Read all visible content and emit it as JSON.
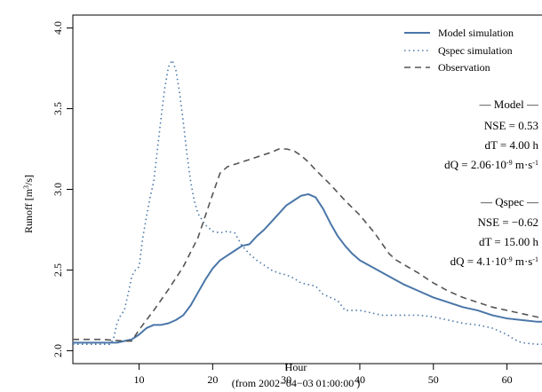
{
  "chart_data": {
    "type": "line",
    "xlabel": "Hour",
    "xlabel_sub": "(from 2002−04−03 01:00:00 )",
    "ylabel": "Runoff [m³/s]",
    "xlim": [
      1,
      65
    ],
    "ylim": [
      2.0,
      4.0
    ],
    "x_ticks": [
      10,
      20,
      30,
      40,
      50,
      60
    ],
    "y_ticks": [
      2.0,
      2.5,
      3.0,
      3.5,
      4.0
    ],
    "x_tick_labels": [
      "10",
      "20",
      "30",
      "40",
      "50",
      "60"
    ],
    "y_tick_labels": [
      "2.0",
      "2.5",
      "3.0",
      "3.5",
      "4.0"
    ],
    "grid": false,
    "legend_position": "top-right",
    "series": [
      {
        "name": "Model simulation",
        "color": "#4a76a8",
        "style": "solid",
        "points": [
          [
            1,
            2.05
          ],
          [
            3,
            2.05
          ],
          [
            5,
            2.05
          ],
          [
            7,
            2.05
          ],
          [
            8,
            2.06
          ],
          [
            9,
            2.07
          ],
          [
            10,
            2.1
          ],
          [
            11,
            2.14
          ],
          [
            12,
            2.16
          ],
          [
            13,
            2.16
          ],
          [
            14,
            2.17
          ],
          [
            15,
            2.19
          ],
          [
            16,
            2.22
          ],
          [
            17,
            2.28
          ],
          [
            18,
            2.36
          ],
          [
            19,
            2.44
          ],
          [
            20,
            2.51
          ],
          [
            21,
            2.56
          ],
          [
            22,
            2.59
          ],
          [
            23,
            2.62
          ],
          [
            24,
            2.65
          ],
          [
            25,
            2.66
          ],
          [
            26,
            2.71
          ],
          [
            27,
            2.75
          ],
          [
            28,
            2.8
          ],
          [
            29,
            2.85
          ],
          [
            30,
            2.9
          ],
          [
            31,
            2.93
          ],
          [
            32,
            2.96
          ],
          [
            33,
            2.97
          ],
          [
            34,
            2.95
          ],
          [
            35,
            2.88
          ],
          [
            36,
            2.79
          ],
          [
            37,
            2.71
          ],
          [
            38,
            2.65
          ],
          [
            39,
            2.6
          ],
          [
            40,
            2.56
          ],
          [
            42,
            2.51
          ],
          [
            44,
            2.46
          ],
          [
            46,
            2.41
          ],
          [
            48,
            2.37
          ],
          [
            50,
            2.33
          ],
          [
            52,
            2.3
          ],
          [
            54,
            2.27
          ],
          [
            56,
            2.25
          ],
          [
            58,
            2.22
          ],
          [
            60,
            2.2
          ],
          [
            62,
            2.19
          ],
          [
            64,
            2.18
          ],
          [
            65,
            2.18
          ]
        ]
      },
      {
        "name": "Qspec simulation",
        "color": "#4a76a8",
        "style": "dotted",
        "points": [
          [
            1,
            2.04
          ],
          [
            3,
            2.04
          ],
          [
            5,
            2.04
          ],
          [
            6,
            2.04
          ],
          [
            6.5,
            2.07
          ],
          [
            7,
            2.17
          ],
          [
            7.5,
            2.22
          ],
          [
            8,
            2.25
          ],
          [
            8.5,
            2.35
          ],
          [
            9,
            2.46
          ],
          [
            9.5,
            2.5
          ],
          [
            10,
            2.52
          ],
          [
            10.5,
            2.7
          ],
          [
            11,
            2.83
          ],
          [
            11.5,
            2.95
          ],
          [
            12,
            3.05
          ],
          [
            12.5,
            3.25
          ],
          [
            13,
            3.45
          ],
          [
            13.5,
            3.63
          ],
          [
            14,
            3.76
          ],
          [
            14.5,
            3.8
          ],
          [
            15,
            3.74
          ],
          [
            15.5,
            3.6
          ],
          [
            16,
            3.42
          ],
          [
            16.5,
            3.22
          ],
          [
            17,
            3.05
          ],
          [
            17.5,
            2.93
          ],
          [
            18,
            2.85
          ],
          [
            19,
            2.78
          ],
          [
            20,
            2.74
          ],
          [
            21,
            2.73
          ],
          [
            22,
            2.74
          ],
          [
            23,
            2.73
          ],
          [
            24,
            2.65
          ],
          [
            25,
            2.6
          ],
          [
            26,
            2.56
          ],
          [
            27,
            2.53
          ],
          [
            28,
            2.5
          ],
          [
            29,
            2.48
          ],
          [
            30,
            2.47
          ],
          [
            31,
            2.45
          ],
          [
            32,
            2.42
          ],
          [
            33,
            2.41
          ],
          [
            34,
            2.4
          ],
          [
            35,
            2.35
          ],
          [
            36,
            2.33
          ],
          [
            37,
            2.31
          ],
          [
            38,
            2.25
          ],
          [
            39,
            2.25
          ],
          [
            40,
            2.25
          ],
          [
            41,
            2.24
          ],
          [
            42,
            2.23
          ],
          [
            43,
            2.22
          ],
          [
            44,
            2.22
          ],
          [
            46,
            2.22
          ],
          [
            48,
            2.22
          ],
          [
            50,
            2.21
          ],
          [
            52,
            2.19
          ],
          [
            54,
            2.17
          ],
          [
            56,
            2.16
          ],
          [
            58,
            2.14
          ],
          [
            60,
            2.1
          ],
          [
            61,
            2.07
          ],
          [
            62,
            2.05
          ],
          [
            64,
            2.04
          ],
          [
            65,
            2.04
          ]
        ]
      },
      {
        "name": "Observation",
        "color": "#555555",
        "style": "dashed",
        "points": [
          [
            1,
            2.07
          ],
          [
            5,
            2.07
          ],
          [
            8,
            2.06
          ],
          [
            9,
            2.06
          ],
          [
            10,
            2.13
          ],
          [
            12,
            2.25
          ],
          [
            14,
            2.38
          ],
          [
            16,
            2.52
          ],
          [
            18,
            2.7
          ],
          [
            20,
            2.97
          ],
          [
            21,
            3.1
          ],
          [
            22,
            3.14
          ],
          [
            24,
            3.17
          ],
          [
            26,
            3.2
          ],
          [
            28,
            3.23
          ],
          [
            29,
            3.25
          ],
          [
            30,
            3.25
          ],
          [
            31,
            3.24
          ],
          [
            32,
            3.21
          ],
          [
            33,
            3.17
          ],
          [
            34,
            3.12
          ],
          [
            36,
            3.03
          ],
          [
            38,
            2.93
          ],
          [
            40,
            2.84
          ],
          [
            42,
            2.73
          ],
          [
            44,
            2.6
          ],
          [
            45,
            2.56
          ],
          [
            48,
            2.48
          ],
          [
            50,
            2.42
          ],
          [
            52,
            2.37
          ],
          [
            54,
            2.33
          ],
          [
            56,
            2.3
          ],
          [
            58,
            2.27
          ],
          [
            60,
            2.25
          ],
          [
            62,
            2.23
          ],
          [
            64,
            2.21
          ],
          [
            65,
            2.2
          ]
        ]
      }
    ],
    "legend_labels": [
      "Model simulation",
      "Qspec simulation",
      "Observation"
    ],
    "stats": {
      "model": {
        "header": "— Model —",
        "nse": "NSE = 0.53",
        "dt": "dT = 4.00 h",
        "dq_prefix": "dQ = 2.06·10",
        "dq_exp": "-9",
        "dq_unit": " m·s",
        "dq_unit_exp": "-1"
      },
      "qspec": {
        "header": "— Qspec —",
        "nse": "NSE = −0.62",
        "dt": "dT = 15.00 h",
        "dq_prefix": "dQ = 4.1·10",
        "dq_exp": "-9",
        "dq_unit": " m·s",
        "dq_unit_exp": "-1"
      }
    }
  }
}
